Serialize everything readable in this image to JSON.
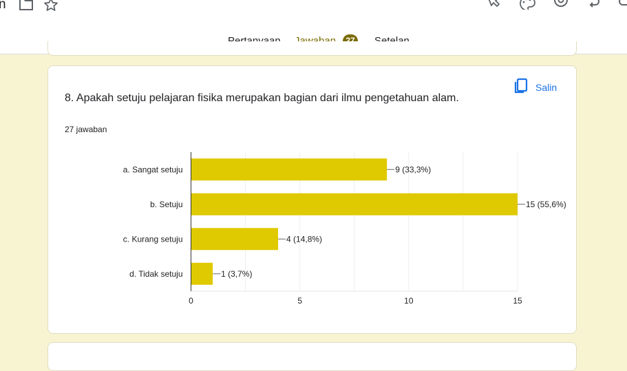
{
  "header": {
    "title_fragment": "n",
    "tabs": [
      {
        "label": "Pertanyaan"
      },
      {
        "label": "Jawaban",
        "badge": "27"
      },
      {
        "label": "Setelan"
      }
    ],
    "accent_color": "#7a6b00"
  },
  "question": {
    "text": "8. Apakah setuju pelajaran fisika merupakan bagian dari ilmu pengetahuan alam.",
    "response_count": "27 jawaban",
    "copy_label": "Salin"
  },
  "chart_data": {
    "type": "bar",
    "orientation": "horizontal",
    "categories": [
      "a. Sangat setuju",
      "b. Setuju",
      "c. Kurang setuju",
      "d. Tidak setuju"
    ],
    "values": [
      9,
      15,
      4,
      1
    ],
    "data_labels": [
      "9 (33,3%)",
      "15 (55,6%)",
      "4 (14,8%)",
      "1 (3,7%)"
    ],
    "xlim": [
      0,
      15
    ],
    "xticks": [
      "0",
      "5",
      "10",
      "15"
    ],
    "grid": true,
    "bar_color": "#dfc900"
  }
}
